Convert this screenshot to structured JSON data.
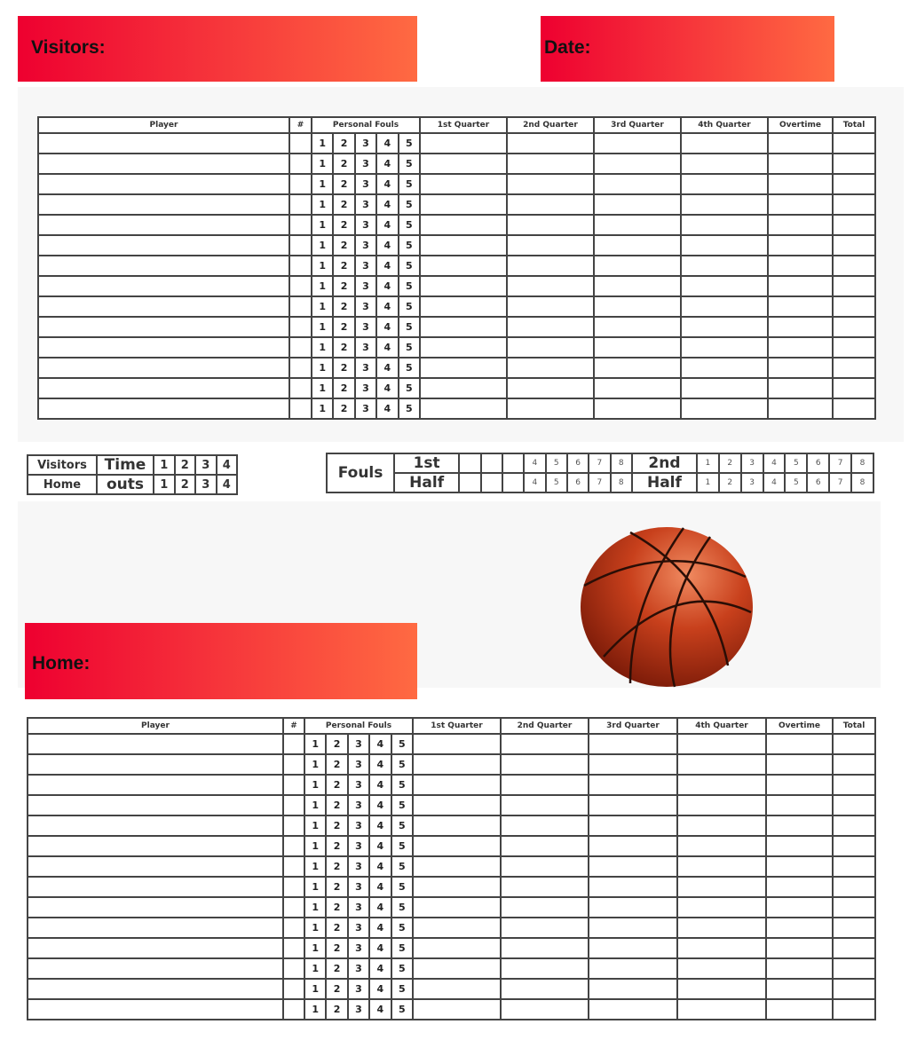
{
  "visitors_label": "Visitors:",
  "date_label": "Date:",
  "home_label": "Home:",
  "columns": [
    "Player",
    "#",
    "Personal Fouls",
    "1st Quarter",
    "2nd Quarter",
    "3rd Quarter",
    "4th Quarter",
    "Overtime",
    "Total"
  ],
  "foul_numbers": [
    "1",
    "2",
    "3",
    "4",
    "5"
  ],
  "player_rows": 14,
  "timeouts": {
    "visitors": "Visitors",
    "home": "Home",
    "time": "Time",
    "outs": "outs",
    "numbers": [
      "1",
      "2",
      "3",
      "4"
    ]
  },
  "team_fouls": {
    "label": "Fouls",
    "first": "1st",
    "half": "Half",
    "second": "2nd",
    "first_half_numbers": [
      "",
      "",
      "",
      "4",
      "5",
      "6",
      "7",
      "8"
    ],
    "second_half_numbers": [
      "1",
      "2",
      "3",
      "4",
      "5",
      "6",
      "7",
      "8"
    ]
  },
  "colors": {
    "banner_start": "#ee0030",
    "banner_end": "#ff6a42"
  }
}
